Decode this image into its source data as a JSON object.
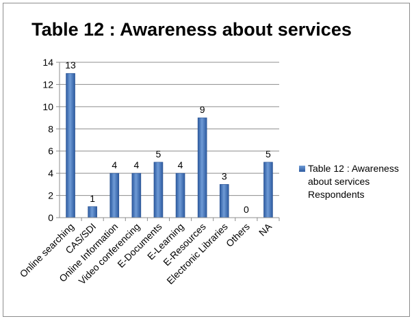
{
  "chart_data": {
    "type": "bar",
    "title": "Table 12 : Awareness about services",
    "categories": [
      "Online searching",
      "CAS/SDI",
      "Online Information",
      "Video conferencing",
      "E-Documents",
      "E-Learning",
      "E-Resources",
      "Electronic Libraries",
      "Others",
      "NA"
    ],
    "series": [
      {
        "name": "Table 12 : Awareness about services Respondents",
        "values": [
          13,
          1,
          4,
          4,
          5,
          4,
          9,
          3,
          0,
          5
        ]
      }
    ],
    "yticks": [
      "0",
      "2",
      "4",
      "6",
      "8",
      "10",
      "12",
      "14"
    ],
    "ylim": [
      0,
      14
    ],
    "grid": true,
    "legend_position": "right",
    "bar_color": "#3a6cb4"
  }
}
